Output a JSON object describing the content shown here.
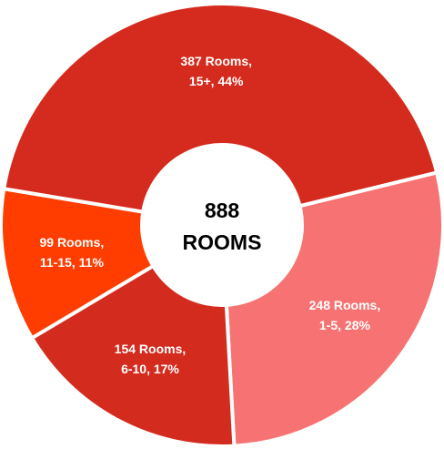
{
  "chart_data": {
    "type": "donut",
    "values": [
      248,
      154,
      99,
      387
    ],
    "colors": [
      "#f77373",
      "#d42b1f",
      "#ff3d00",
      "#d52b1e"
    ],
    "value_labels": [
      [
        "248 Rooms,",
        "1-5, 28%"
      ],
      [
        "154 Rooms,",
        "6-10, 17%"
      ],
      [
        "99 Rooms,",
        "11-15, 11%"
      ],
      [
        "387 Rooms,",
        "15+, 44%"
      ]
    ],
    "center_text": [
      "888",
      "ROOMS"
    ]
  }
}
